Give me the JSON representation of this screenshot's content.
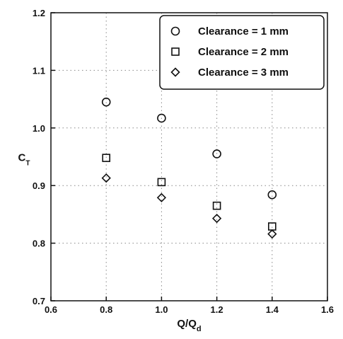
{
  "chart_data": {
    "type": "scatter",
    "title": "",
    "xlabel": "Q/Q",
    "xlabel_sub": "d",
    "ylabel": "C",
    "ylabel_sub": "T",
    "xlim": [
      0.6,
      1.6
    ],
    "ylim": [
      0.7,
      1.2
    ],
    "x_ticks": [
      "0.6",
      "0.8",
      "1.0",
      "1.2",
      "1.4",
      "1.6"
    ],
    "y_ticks": [
      "0.7",
      "0.8",
      "0.9",
      "1.0",
      "1.1",
      "1.2"
    ],
    "grid": "dotted",
    "legend_position": "top-right",
    "series": [
      {
        "name": "Clearance = 1 mm",
        "marker": "circle",
        "x": [
          0.8,
          1.0,
          1.2,
          1.4
        ],
        "y": [
          1.045,
          1.017,
          0.955,
          0.884
        ]
      },
      {
        "name": "Clearance = 2 mm",
        "marker": "square",
        "x": [
          0.8,
          1.0,
          1.2,
          1.4
        ],
        "y": [
          0.948,
          0.906,
          0.865,
          0.829
        ]
      },
      {
        "name": "Clearance = 3 mm",
        "marker": "diamond",
        "x": [
          0.8,
          1.0,
          1.2,
          1.4
        ],
        "y": [
          0.913,
          0.879,
          0.843,
          0.816
        ]
      }
    ]
  }
}
